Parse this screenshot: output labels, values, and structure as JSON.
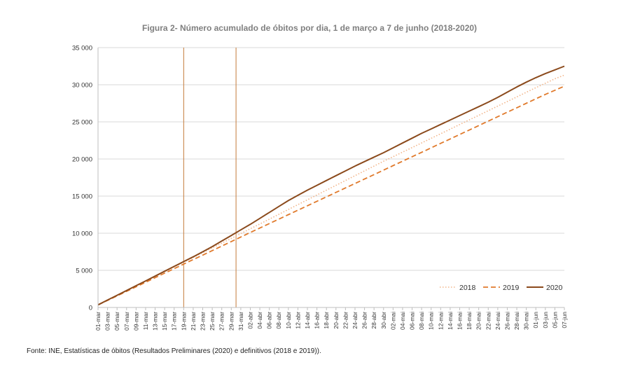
{
  "figure": {
    "title": "Figura 2- Número acumulado de óbitos por dia, 1 de março a 7 de junho (2018-2020)",
    "source": "Fonte: INE, Estatísticas de óbitos (Resultados Preliminares (2020) e definitivos (2018 e 2019))."
  },
  "chart_data": {
    "type": "line",
    "title": "Figura 2- Número acumulado de óbitos por dia, 1 de março a 7 de junho (2018-2020)",
    "xlabel": "",
    "ylabel": "",
    "ylim": [
      0,
      35000
    ],
    "yticks": [
      0,
      5000,
      10000,
      15000,
      20000,
      25000,
      30000,
      35000
    ],
    "ytick_labels": [
      "0",
      "5 000",
      "10 000",
      "15 000",
      "20 000",
      "25 000",
      "30 000",
      "35 000"
    ],
    "grid": "horizontal",
    "legend_position": "bottom-right",
    "x_tick_labels": [
      "01-mar",
      "03-mar",
      "05-mar",
      "07-mar",
      "09-mar",
      "11-mar",
      "13-mar",
      "15-mar",
      "17-mar",
      "19-mar",
      "21-mar",
      "23-mar",
      "25-mar",
      "27-mar",
      "29-mar",
      "31-mar",
      "02-abr",
      "04-abr",
      "06-abr",
      "08-abr",
      "10-abr",
      "12-abr",
      "14-abr",
      "16-abr",
      "18-abr",
      "20-abr",
      "22-abr",
      "24-abr",
      "26-abr",
      "28-abr",
      "30-abr",
      "02-mai",
      "04-mai",
      "06-mai",
      "08-mai",
      "10-mai",
      "12-mai",
      "14-mai",
      "16-mai",
      "18-mai",
      "20-mai",
      "22-mai",
      "24-mai",
      "26-mai",
      "28-mai",
      "30-mai",
      "01-jun",
      "03-jun",
      "05-jun",
      "07-jun"
    ],
    "vertical_markers": [
      "19-mar",
      "30-mar"
    ],
    "series": [
      {
        "name": "2018",
        "style": "dotted",
        "color": "#f2b58a",
        "values": [
          350,
          1000,
          1630,
          2260,
          2900,
          3550,
          4180,
          4820,
          5460,
          6100,
          6750,
          7380,
          8020,
          8660,
          9300,
          9950,
          10600,
          11250,
          11900,
          12550,
          13200,
          13850,
          14500,
          15150,
          15800,
          16450,
          17100,
          17750,
          18400,
          19050,
          19700,
          20300,
          20920,
          21540,
          22160,
          22780,
          23400,
          24020,
          24640,
          25260,
          25880,
          26500,
          27120,
          27740,
          28360,
          28980,
          29600,
          30200,
          30800,
          31300
        ]
      },
      {
        "name": "2019",
        "style": "dashed",
        "color": "#e07a2c",
        "values": [
          350,
          950,
          1560,
          2170,
          2780,
          3400,
          4010,
          4620,
          5230,
          5840,
          6450,
          7050,
          7660,
          8270,
          8880,
          9490,
          10100,
          10700,
          11300,
          11900,
          12500,
          13100,
          13700,
          14300,
          14900,
          15500,
          16100,
          16700,
          17300,
          17900,
          18500,
          19100,
          19700,
          20300,
          20900,
          21500,
          22100,
          22700,
          23300,
          23900,
          24500,
          25100,
          25700,
          26300,
          26900,
          27500,
          28100,
          28700,
          29250,
          29800
        ]
      },
      {
        "name": "2020",
        "style": "solid",
        "color": "#8b4a1c",
        "values": [
          350,
          1000,
          1640,
          2280,
          2930,
          3580,
          4230,
          4880,
          5530,
          6180,
          6820,
          7500,
          8200,
          8950,
          9700,
          10450,
          11200,
          12000,
          12800,
          13600,
          14400,
          15100,
          15800,
          16450,
          17100,
          17750,
          18400,
          19050,
          19650,
          20250,
          20850,
          21500,
          22150,
          22800,
          23450,
          24050,
          24650,
          25250,
          25850,
          26450,
          27050,
          27650,
          28300,
          29000,
          29700,
          30350,
          30950,
          31500,
          32000,
          32500
        ]
      }
    ]
  }
}
